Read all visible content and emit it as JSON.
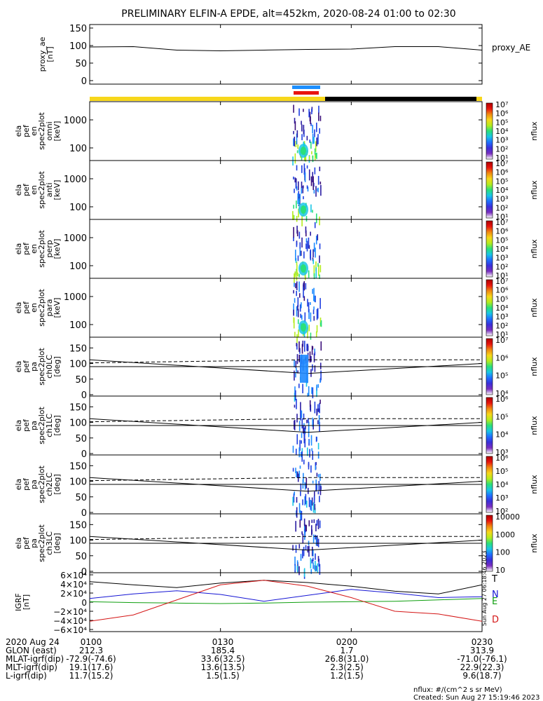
{
  "title": "PRELIMINARY ELFIN-A EPDE, alt=452km, 2020-08-24 01:00 to 02:30",
  "time_axis": {
    "start": "2020-08-24 01:00",
    "end": "2020-08-24 02:30",
    "ticks": [
      "0100",
      "0130",
      "0200",
      "0230"
    ]
  },
  "colors": {
    "day_bar": "#f7d71b",
    "night_bar": "#000000",
    "science_blue": "#1e90ff",
    "science_red": "#e8150f",
    "T": "#000000",
    "N": "#1515d4",
    "E": "#0f9f0f",
    "D": "#d41515"
  },
  "chart_data": [
    {
      "type": "line",
      "name": "proxy_ae",
      "ylabel": "proxy_ae [nT]",
      "legend": "proxy_AE",
      "ylim": [
        0,
        150
      ],
      "yticks": [
        "0",
        "50",
        "100",
        "150"
      ],
      "x": [
        "01:00",
        "01:10",
        "01:20",
        "01:30",
        "01:40",
        "01:50",
        "02:00",
        "02:10",
        "02:20",
        "02:30"
      ],
      "values": [
        96,
        97,
        87,
        85,
        87,
        89,
        90,
        97,
        97,
        87
      ]
    },
    {
      "type": "heatmap",
      "name": "ela_pef_en_spec2plot_omni",
      "ylabel": "ela pef en spec2plot omni [keV]",
      "yticks": [
        "100",
        "1000"
      ],
      "colorbar": {
        "label": "nflux",
        "ticks": [
          "10^1",
          "10^2",
          "10^3",
          "10^4",
          "10^5",
          "10^6",
          "10^7"
        ]
      },
      "active_interval": [
        "01:49",
        "01:53"
      ],
      "peak_flux_energy_keV": 100
    },
    {
      "type": "heatmap",
      "name": "ela_pef_en_spec2plot_anti",
      "ylabel": "ela pef en spec2plot anti [keV]",
      "yticks": [
        "100",
        "1000"
      ],
      "colorbar": {
        "label": "nflux",
        "ticks": [
          "10^1",
          "10^2",
          "10^3",
          "10^4",
          "10^5",
          "10^6",
          "10^7"
        ]
      },
      "active_interval": [
        "01:49",
        "01:53"
      ]
    },
    {
      "type": "heatmap",
      "name": "ela_pef_en_spec2plot_perp",
      "ylabel": "ela pef en spec2plot perp [keV]",
      "yticks": [
        "100",
        "1000"
      ],
      "colorbar": {
        "label": "nflux",
        "ticks": [
          "10^1",
          "10^2",
          "10^3",
          "10^4",
          "10^5",
          "10^6",
          "10^7"
        ]
      },
      "active_interval": [
        "01:49",
        "01:53"
      ]
    },
    {
      "type": "heatmap",
      "name": "ela_pef_en_spec2plot_para",
      "ylabel": "ela pef en spec2plot para [keV]",
      "yticks": [
        "100",
        "1000"
      ],
      "colorbar": {
        "label": "nflux",
        "ticks": [
          "10^1",
          "10^2",
          "10^3",
          "10^4",
          "10^5",
          "10^6",
          "10^7"
        ]
      },
      "active_interval": [
        "01:49",
        "01:53"
      ]
    },
    {
      "type": "heatmap",
      "name": "ela_pef_pa_spec2plot_ch0LC",
      "ylabel": "ela pef pa spec2plot ch0LC [deg]",
      "ylim": [
        0,
        180
      ],
      "yticks": [
        "0",
        "50",
        "100",
        "150"
      ],
      "colorbar": {
        "label": "nflux",
        "ticks": [
          "10^4",
          "10^5",
          "10^6",
          "10^7"
        ]
      },
      "loss_cone_deg": {
        "x": [
          "01:00",
          "01:50",
          "02:30"
        ],
        "values": [
          112,
          68,
          100
        ]
      },
      "anti_loss_cone_deg": {
        "x": [
          "01:00",
          "01:50",
          "02:30"
        ],
        "values": [
          102,
          112,
          112
        ]
      }
    },
    {
      "type": "heatmap",
      "name": "ela_pef_pa_spec2plot_ch1LC",
      "ylabel": "ela pef pa spec2plot ch1LC [deg]",
      "ylim": [
        0,
        180
      ],
      "yticks": [
        "0",
        "50",
        "100",
        "150"
      ],
      "colorbar": {
        "label": "nflux",
        "ticks": [
          "10^3",
          "10^4",
          "10^5",
          "10^6"
        ]
      },
      "loss_cone_deg": {
        "x": [
          "01:00",
          "01:50",
          "02:30"
        ],
        "values": [
          112,
          68,
          100
        ]
      },
      "anti_loss_cone_deg": {
        "x": [
          "01:00",
          "01:50",
          "02:30"
        ],
        "values": [
          102,
          112,
          112
        ]
      }
    },
    {
      "type": "heatmap",
      "name": "ela_pef_pa_spec2plot_ch2LC",
      "ylabel": "ela pef pa spec2plot ch2LC [deg]",
      "ylim": [
        0,
        180
      ],
      "yticks": [
        "0",
        "50",
        "100",
        "150"
      ],
      "colorbar": {
        "label": "nflux",
        "ticks": [
          "10^2",
          "10^3",
          "10^4",
          "10^5",
          "10^6"
        ]
      },
      "loss_cone_deg": {
        "x": [
          "01:00",
          "01:50",
          "02:30"
        ],
        "values": [
          112,
          68,
          100
        ]
      },
      "anti_loss_cone_deg": {
        "x": [
          "01:00",
          "01:50",
          "02:30"
        ],
        "values": [
          102,
          112,
          112
        ]
      }
    },
    {
      "type": "heatmap",
      "name": "ela_pef_pa_spec2plot_ch3LC",
      "ylabel": "ela pef pa spec2plot ch3LC [deg]",
      "ylim": [
        0,
        180
      ],
      "yticks": [
        "0",
        "50",
        "100",
        "150"
      ],
      "colorbar": {
        "label": "nflux",
        "ticks": [
          "10",
          "100",
          "1000",
          "10000"
        ]
      },
      "loss_cone_deg": {
        "x": [
          "01:00",
          "01:50",
          "02:30"
        ],
        "values": [
          112,
          68,
          100
        ]
      },
      "anti_loss_cone_deg": {
        "x": [
          "01:00",
          "01:50",
          "02:30"
        ],
        "values": [
          102,
          112,
          112
        ]
      }
    },
    {
      "type": "line",
      "name": "IGRF",
      "ylabel": "IGRF [nT]",
      "ylim": [
        -60000,
        60000
      ],
      "yticks": [
        "6×10^4",
        "4×10^4",
        "2×10^4",
        "0",
        "−2×10^4",
        "−4×10^4",
        "−6×10^4"
      ],
      "x": [
        "01:00",
        "01:10",
        "01:20",
        "01:30",
        "01:40",
        "01:50",
        "02:00",
        "02:10",
        "02:20",
        "02:30"
      ],
      "series": [
        {
          "name": "T",
          "values": [
            45000,
            38000,
            32000,
            42000,
            48000,
            43000,
            35000,
            24000,
            18000,
            38000
          ]
        },
        {
          "name": "N",
          "values": [
            8000,
            18000,
            25000,
            17000,
            2000,
            15000,
            28000,
            20000,
            10000,
            12000
          ]
        },
        {
          "name": "E",
          "values": [
            1000,
            -1000,
            -2000,
            -3000,
            -2000,
            0,
            1000,
            2000,
            5000,
            8000
          ]
        },
        {
          "name": "D",
          "values": [
            -42000,
            -28000,
            5000,
            38000,
            48000,
            35000,
            10000,
            -20000,
            -26000,
            -42000
          ]
        }
      ]
    }
  ],
  "annotations": {
    "row_labels": [
      "2020 Aug 24",
      "GLON (east)",
      "MLAT-igrf(dip)",
      "MLT-igrf(dip)",
      "L-igrf(dip)"
    ],
    "columns": [
      [
        "0100",
        "212.3",
        "-72.9(-74.6)",
        "19.1(17.6)",
        "11.7(15.2)"
      ],
      [
        "0130",
        "185.4",
        "33.6(32.5)",
        "13.6(13.5)",
        "1.5(1.5)"
      ],
      [
        "0200",
        "1.7",
        "26.8(31.0)",
        "2.3(2.5)",
        "1.2(1.5)"
      ],
      [
        "0230",
        "313.9",
        "-71.0(-76.1)",
        "22.9(22.3)",
        "9.6(18.7)"
      ]
    ],
    "units_note": "nflux: #/(cm^2 s sr MeV)",
    "created": "Created: Sun Aug 27 15:19:46 2023",
    "side_stamp": "Sun Aug 27 06:18:46 2023"
  }
}
